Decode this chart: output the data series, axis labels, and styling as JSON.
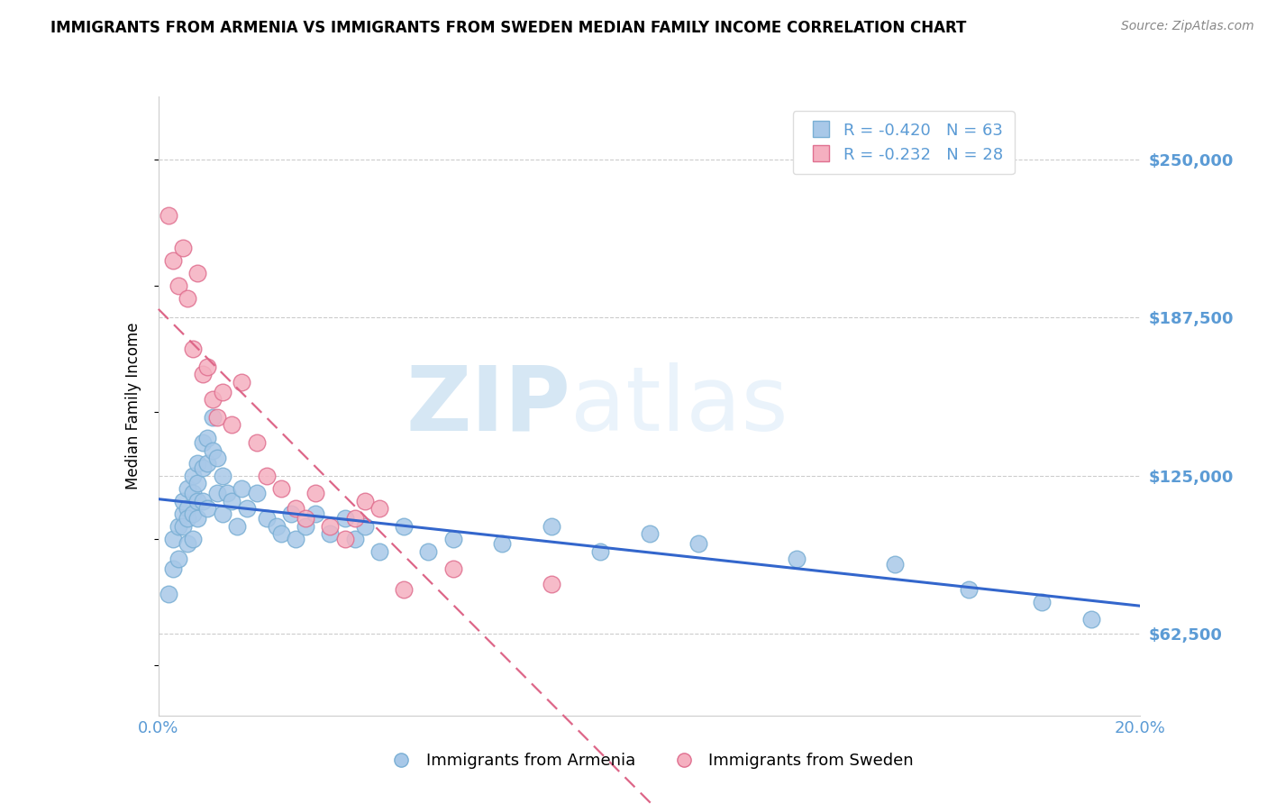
{
  "title": "IMMIGRANTS FROM ARMENIA VS IMMIGRANTS FROM SWEDEN MEDIAN FAMILY INCOME CORRELATION CHART",
  "source": "Source: ZipAtlas.com",
  "ylabel": "Median Family Income",
  "xlim": [
    0.0,
    0.2
  ],
  "ylim": [
    30000,
    275000
  ],
  "yticks": [
    62500,
    125000,
    187500,
    250000
  ],
  "ytick_labels": [
    "$62,500",
    "$125,000",
    "$187,500",
    "$250,000"
  ],
  "xticks": [
    0.0,
    0.05,
    0.1,
    0.15,
    0.2
  ],
  "xtick_labels": [
    "0.0%",
    "",
    "",
    "",
    "20.0%"
  ],
  "legend_entries": [
    {
      "label": "R = -0.420   N = 63",
      "color": "#a8c8e8"
    },
    {
      "label": "R = -0.232   N = 28",
      "color": "#f5b0c0"
    }
  ],
  "legend_labels_bottom": [
    "Immigrants from Armenia",
    "Immigrants from Sweden"
  ],
  "watermark_zip": "ZIP",
  "watermark_atlas": "atlas",
  "title_fontsize": 12,
  "axis_label_color": "#5b9bd5",
  "grid_color": "#cccccc",
  "background_color": "#ffffff",
  "armenia_color": "#a8c8e8",
  "armenia_edge_color": "#7aafd4",
  "sweden_color": "#f5b0c0",
  "sweden_edge_color": "#e07090",
  "armenia_line_color": "#3366cc",
  "sweden_line_color": "#dd6688",
  "armenia_scatter_x": [
    0.002,
    0.003,
    0.003,
    0.004,
    0.004,
    0.005,
    0.005,
    0.005,
    0.006,
    0.006,
    0.006,
    0.006,
    0.007,
    0.007,
    0.007,
    0.007,
    0.008,
    0.008,
    0.008,
    0.008,
    0.009,
    0.009,
    0.009,
    0.01,
    0.01,
    0.01,
    0.011,
    0.011,
    0.012,
    0.012,
    0.013,
    0.013,
    0.014,
    0.015,
    0.016,
    0.017,
    0.018,
    0.02,
    0.022,
    0.024,
    0.025,
    0.027,
    0.028,
    0.03,
    0.032,
    0.035,
    0.038,
    0.04,
    0.042,
    0.045,
    0.05,
    0.055,
    0.06,
    0.07,
    0.08,
    0.09,
    0.1,
    0.11,
    0.13,
    0.15,
    0.165,
    0.18,
    0.19
  ],
  "armenia_scatter_y": [
    78000,
    88000,
    100000,
    92000,
    105000,
    110000,
    115000,
    105000,
    120000,
    112000,
    108000,
    98000,
    125000,
    118000,
    110000,
    100000,
    130000,
    122000,
    115000,
    108000,
    138000,
    128000,
    115000,
    140000,
    130000,
    112000,
    148000,
    135000,
    132000,
    118000,
    125000,
    110000,
    118000,
    115000,
    105000,
    120000,
    112000,
    118000,
    108000,
    105000,
    102000,
    110000,
    100000,
    105000,
    110000,
    102000,
    108000,
    100000,
    105000,
    95000,
    105000,
    95000,
    100000,
    98000,
    105000,
    95000,
    102000,
    98000,
    92000,
    90000,
    80000,
    75000,
    68000
  ],
  "sweden_scatter_x": [
    0.002,
    0.003,
    0.004,
    0.005,
    0.006,
    0.007,
    0.008,
    0.009,
    0.01,
    0.011,
    0.012,
    0.013,
    0.015,
    0.017,
    0.02,
    0.022,
    0.025,
    0.028,
    0.03,
    0.032,
    0.035,
    0.038,
    0.04,
    0.042,
    0.045,
    0.05,
    0.06,
    0.08
  ],
  "sweden_scatter_y": [
    228000,
    210000,
    200000,
    215000,
    195000,
    175000,
    205000,
    165000,
    168000,
    155000,
    148000,
    158000,
    145000,
    162000,
    138000,
    125000,
    120000,
    112000,
    108000,
    118000,
    105000,
    100000,
    108000,
    115000,
    112000,
    80000,
    88000,
    82000
  ]
}
